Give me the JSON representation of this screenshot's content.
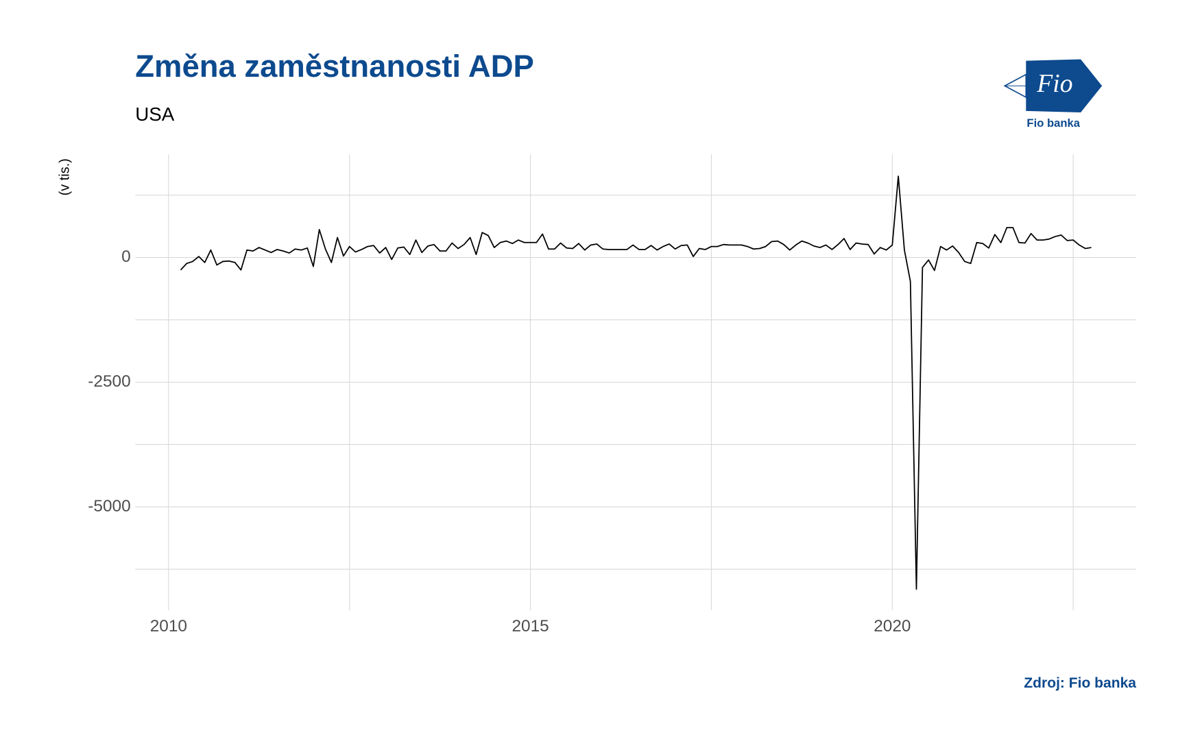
{
  "chart_data": {
    "type": "line",
    "title": "Změna zaměstnanosti ADP",
    "subtitle": "USA",
    "y_label": "(v tis.)",
    "source": "Zdroj: Fio banka",
    "logo": {
      "mark": "Fio",
      "name": "Fio banka"
    },
    "color": "#000000",
    "grid": true,
    "xlim": [
      2009.54,
      2023.37
    ],
    "xticks": [
      2010,
      2015,
      2020
    ],
    "xminor": [
      2012.5,
      2017.5,
      2022.5
    ],
    "ylim": [
      -7070,
      2070
    ],
    "yticks": [
      0,
      -2500,
      -5000
    ],
    "yminor": [
      1250,
      -1250,
      -3750,
      -6250
    ],
    "x": [
      2010.167,
      2010.25,
      2010.333,
      2010.417,
      2010.5,
      2010.583,
      2010.667,
      2010.75,
      2010.833,
      2010.917,
      2011.0,
      2011.083,
      2011.167,
      2011.25,
      2011.333,
      2011.417,
      2011.5,
      2011.583,
      2011.667,
      2011.75,
      2011.833,
      2011.917,
      2012.0,
      2012.083,
      2012.167,
      2012.25,
      2012.333,
      2012.417,
      2012.5,
      2012.583,
      2012.667,
      2012.75,
      2012.833,
      2012.917,
      2013.0,
      2013.083,
      2013.167,
      2013.25,
      2013.333,
      2013.417,
      2013.5,
      2013.583,
      2013.667,
      2013.75,
      2013.833,
      2013.917,
      2014.0,
      2014.083,
      2014.167,
      2014.25,
      2014.333,
      2014.417,
      2014.5,
      2014.583,
      2014.667,
      2014.75,
      2014.833,
      2014.917,
      2015.0,
      2015.083,
      2015.167,
      2015.25,
      2015.333,
      2015.417,
      2015.5,
      2015.583,
      2015.667,
      2015.75,
      2015.833,
      2015.917,
      2016.0,
      2016.083,
      2016.167,
      2016.25,
      2016.333,
      2016.417,
      2016.5,
      2016.583,
      2016.667,
      2016.75,
      2016.833,
      2016.917,
      2017.0,
      2017.083,
      2017.167,
      2017.25,
      2017.333,
      2017.417,
      2017.5,
      2017.583,
      2017.667,
      2017.75,
      2017.833,
      2017.917,
      2018.0,
      2018.083,
      2018.167,
      2018.25,
      2018.333,
      2018.417,
      2018.5,
      2018.583,
      2018.667,
      2018.75,
      2018.833,
      2018.917,
      2019.0,
      2019.083,
      2019.167,
      2019.25,
      2019.333,
      2019.417,
      2019.5,
      2019.583,
      2019.667,
      2019.75,
      2019.833,
      2019.917,
      2020.0,
      2020.083,
      2020.167,
      2020.25,
      2020.333,
      2020.417,
      2020.5,
      2020.583,
      2020.667,
      2020.75,
      2020.833,
      2020.917,
      2021.0,
      2021.083,
      2021.167,
      2021.25,
      2021.333,
      2021.417,
      2021.5,
      2021.583,
      2021.667,
      2021.75,
      2021.833,
      2021.917,
      2022.0,
      2022.083,
      2022.167,
      2022.25,
      2022.333,
      2022.417,
      2022.5,
      2022.583,
      2022.667,
      2022.75
    ],
    "values": [
      -250,
      -120,
      -80,
      20,
      -100,
      150,
      -150,
      -80,
      -70,
      -100,
      -250,
      150,
      130,
      200,
      150,
      100,
      160,
      130,
      90,
      170,
      150,
      190,
      -180,
      560,
      170,
      -100,
      400,
      30,
      220,
      110,
      160,
      220,
      240,
      90,
      200,
      -40,
      190,
      210,
      60,
      350,
      100,
      230,
      260,
      130,
      130,
      290,
      180,
      260,
      400,
      60,
      500,
      440,
      200,
      300,
      330,
      280,
      350,
      300,
      300,
      300,
      470,
      170,
      170,
      290,
      190,
      180,
      280,
      150,
      250,
      270,
      170,
      160,
      160,
      160,
      160,
      250,
      160,
      160,
      240,
      150,
      220,
      270,
      170,
      240,
      250,
      20,
      180,
      160,
      220,
      220,
      260,
      250,
      250,
      250,
      220,
      170,
      180,
      220,
      320,
      330,
      260,
      150,
      250,
      330,
      290,
      230,
      200,
      250,
      160,
      260,
      380,
      160,
      290,
      270,
      260,
      70,
      200,
      150,
      250,
      1630,
      150,
      -480,
      -6650,
      -200,
      -50,
      -260,
      220,
      150,
      230,
      100,
      -80,
      -120,
      300,
      280,
      190,
      460,
      300,
      600,
      600,
      300,
      290,
      480,
      350,
      350,
      370,
      420,
      450,
      340,
      350,
      250,
      180,
      200
    ]
  }
}
